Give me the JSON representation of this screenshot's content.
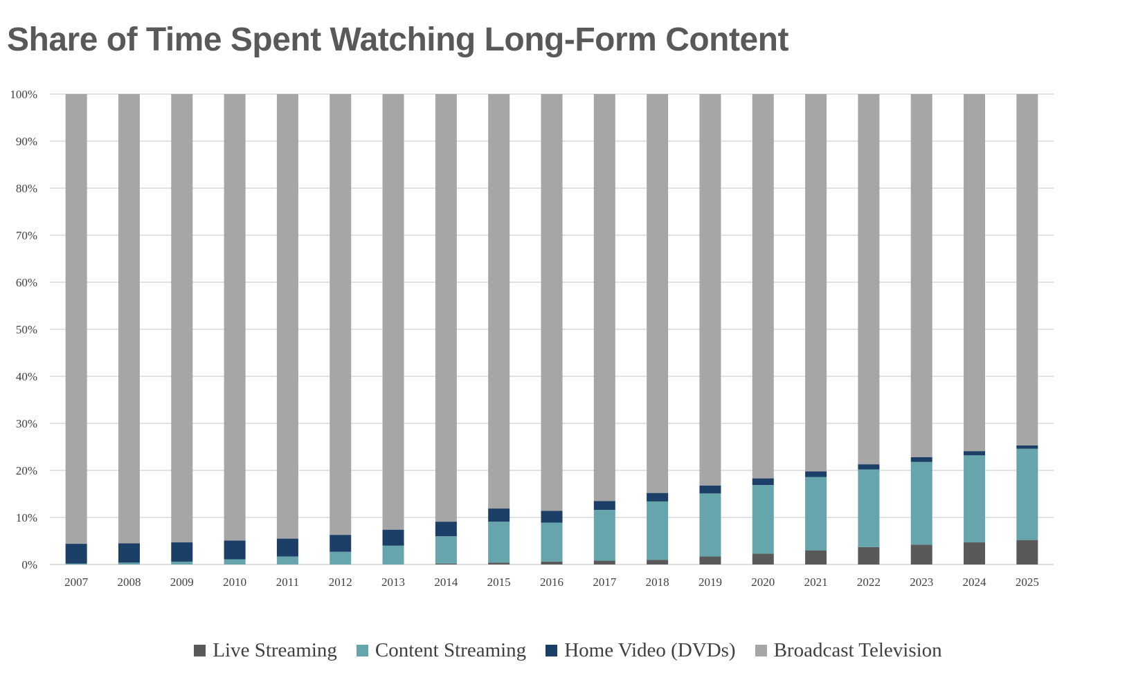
{
  "chart_data": {
    "type": "bar",
    "stacked": true,
    "title": "Share of Time Spent Watching Long-Form Content",
    "categories": [
      "2007",
      "2008",
      "2009",
      "2010",
      "2011",
      "2012",
      "2013",
      "2014",
      "2015",
      "2016",
      "2017",
      "2018",
      "2019",
      "2020",
      "2021",
      "2022",
      "2023",
      "2024",
      "2025"
    ],
    "yticks": [
      "0%",
      "10%",
      "20%",
      "30%",
      "40%",
      "50%",
      "60%",
      "70%",
      "80%",
      "90%",
      "100%"
    ],
    "ylim": [
      0,
      100
    ],
    "grid": true,
    "legend_position": "bottom",
    "series": [
      {
        "name": "Live Streaming",
        "color": "#595959",
        "values": [
          0,
          0,
          0,
          0,
          0,
          0,
          0,
          0.2,
          0.4,
          0.6,
          0.8,
          1.0,
          1.7,
          2.3,
          3.0,
          3.7,
          4.2,
          4.7,
          5.2
        ]
      },
      {
        "name": "Content Streaming",
        "color": "#67a5ad",
        "values": [
          0.2,
          0.4,
          0.6,
          1.1,
          1.7,
          2.7,
          4.0,
          5.8,
          8.7,
          8.3,
          10.8,
          12.4,
          13.4,
          14.6,
          15.6,
          16.5,
          17.6,
          18.5,
          19.4
        ]
      },
      {
        "name": "Home Video (DVDs)",
        "color": "#1b3f66",
        "values": [
          4.2,
          4.1,
          4.1,
          4.0,
          3.8,
          3.6,
          3.4,
          3.1,
          2.8,
          2.5,
          1.9,
          1.8,
          1.7,
          1.4,
          1.2,
          1.1,
          1.0,
          0.9,
          0.7
        ]
      },
      {
        "name": "Broadcast Television",
        "color": "#a6a6a6",
        "values": [
          95.6,
          95.5,
          95.3,
          94.9,
          94.5,
          93.7,
          92.6,
          90.9,
          88.1,
          88.6,
          86.5,
          84.8,
          83.2,
          81.7,
          80.2,
          78.7,
          77.2,
          75.9,
          74.7
        ]
      }
    ]
  }
}
